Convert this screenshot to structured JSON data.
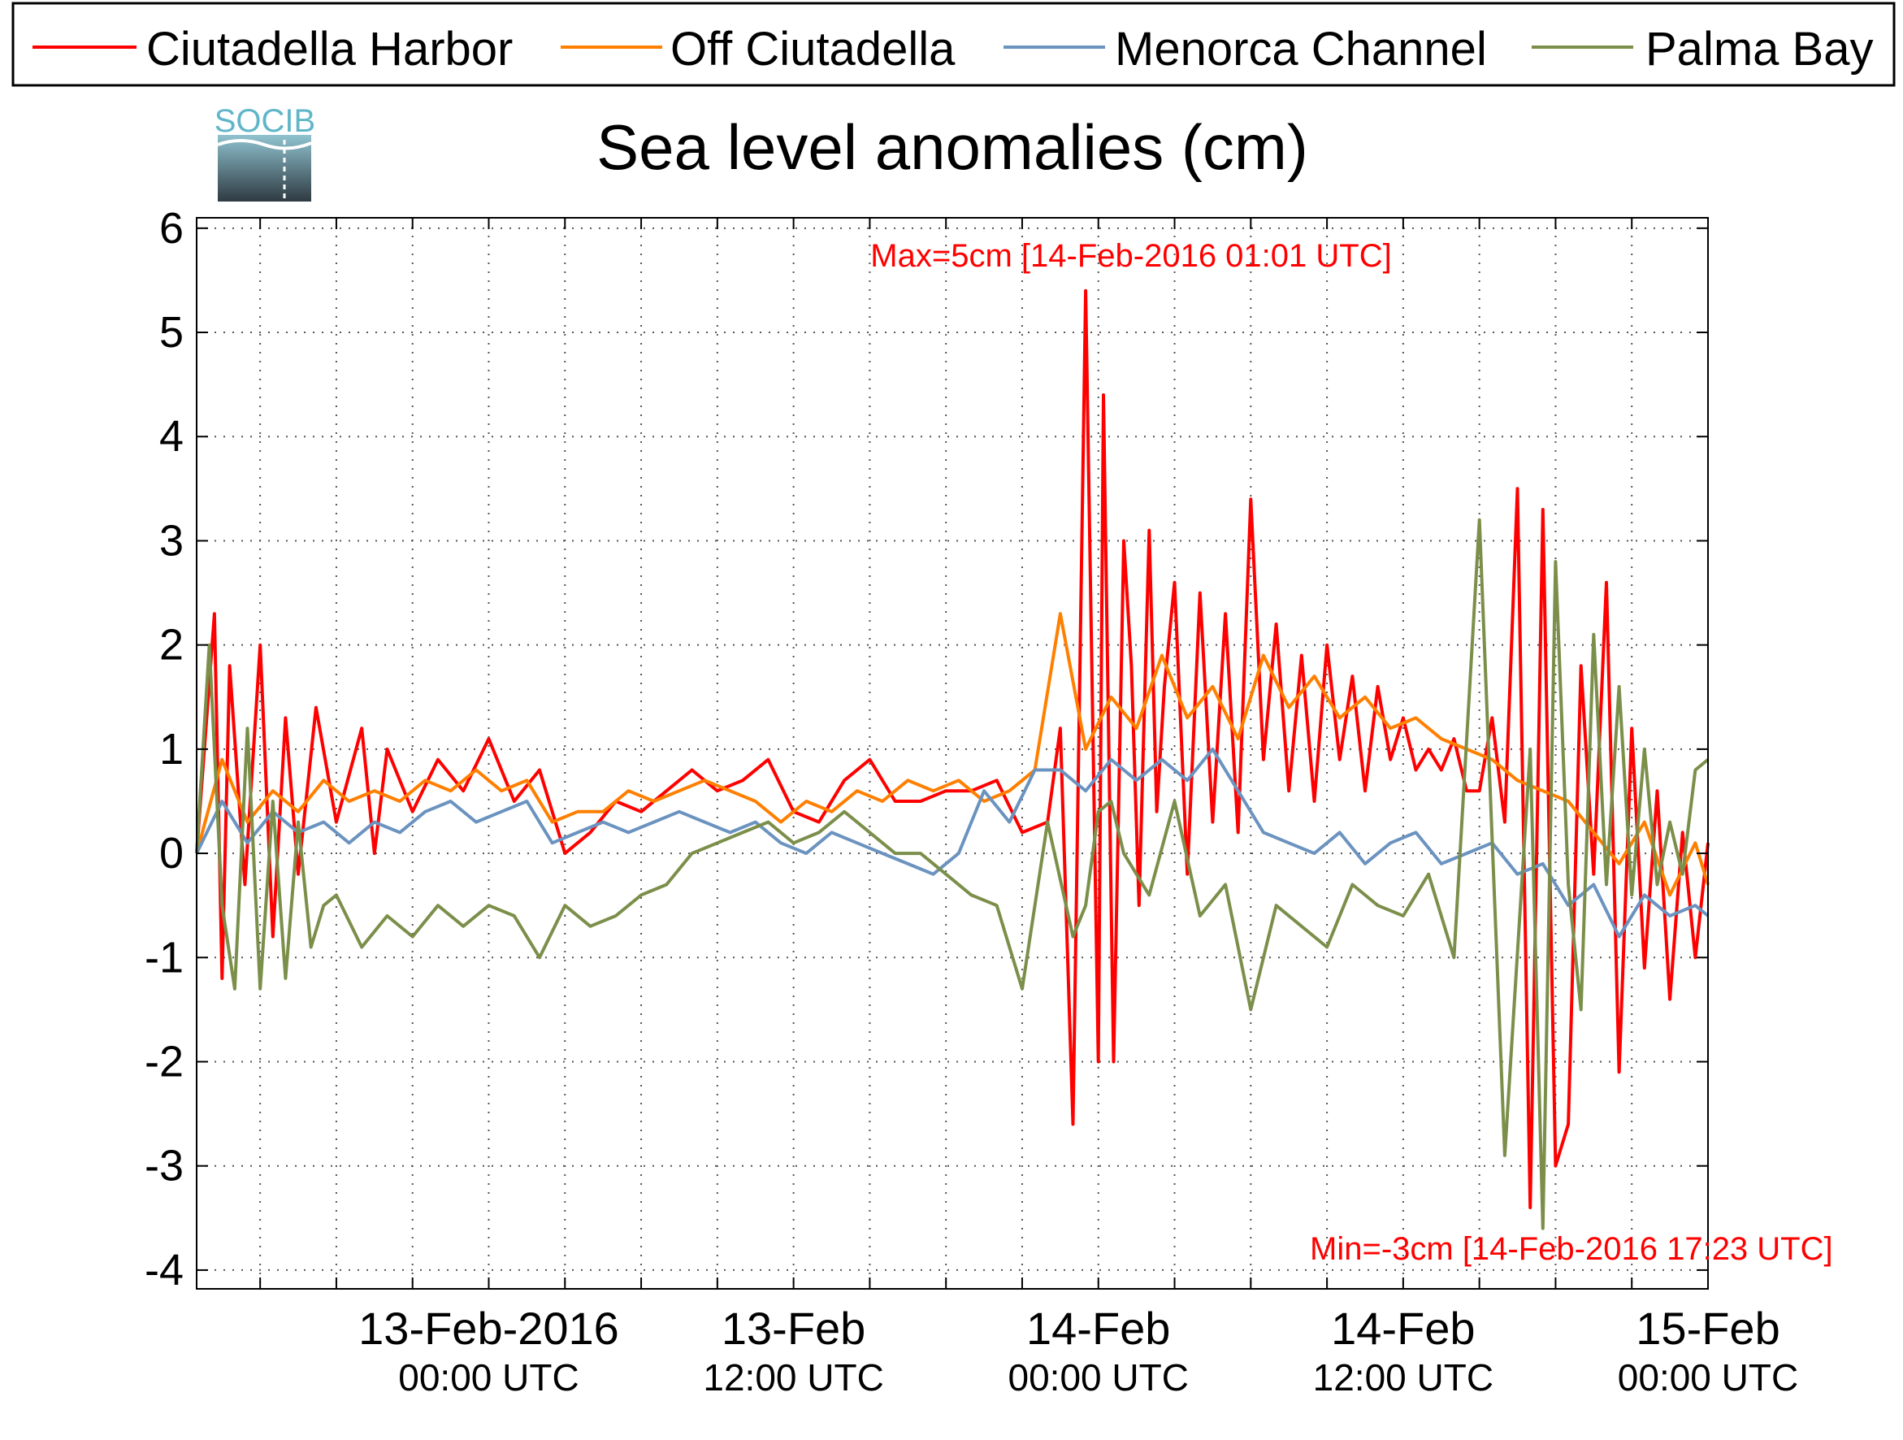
{
  "logo": {
    "text": "SOCIB"
  },
  "chart_data": {
    "type": "line",
    "title": "Sea level anomalies (cm)",
    "xlabel": "",
    "ylabel": "",
    "ylim": [
      -4.18,
      6.1
    ],
    "xlim_hours": [
      -11.5,
      48
    ],
    "y_ticks": [
      6,
      5,
      4,
      3,
      2,
      1,
      0,
      -1,
      -2,
      -3,
      -4
    ],
    "x_tick_labels": [
      {
        "hours": 0,
        "date": "13-Feb-2016",
        "time": "00:00 UTC"
      },
      {
        "hours": 12,
        "date": "13-Feb",
        "time": "12:00 UTC"
      },
      {
        "hours": 24,
        "date": "14-Feb",
        "time": "00:00 UTC"
      },
      {
        "hours": 36,
        "date": "14-Feb",
        "time": "12:00 UTC"
      },
      {
        "hours": 48,
        "date": "15-Feb",
        "time": "00:00 UTC"
      }
    ],
    "grid": true,
    "legend_position": "top",
    "annotations": {
      "max": "Max=5cm [14-Feb-2016 01:01 UTC]",
      "min": "Min=-3cm [14-Feb-2016 17:23 UTC]"
    },
    "series": [
      {
        "name": "Ciutadella Harbor",
        "color": "#ff0000",
        "x": [
          -11.5,
          -10.8,
          -10.5,
          -10.2,
          -9.6,
          -9.0,
          -8.5,
          -8.0,
          -7.5,
          -6.8,
          -6.0,
          -5.0,
          -4.5,
          -4.0,
          -3.0,
          -2.0,
          -1.0,
          0,
          1,
          2,
          3,
          4,
          5,
          6,
          7,
          8,
          9,
          10,
          11,
          12,
          13,
          14,
          15,
          16,
          17,
          18,
          19,
          20,
          21,
          22,
          22.5,
          23,
          23.5,
          24,
          24.2,
          24.6,
          25.0,
          25.3,
          25.6,
          26.0,
          26.3,
          26.6,
          27.0,
          27.5,
          28.0,
          28.5,
          29,
          29.5,
          30,
          30.5,
          31,
          31.5,
          32,
          32.5,
          33,
          33.5,
          34,
          34.5,
          35,
          35.5,
          36,
          36.5,
          37,
          37.5,
          38,
          38.5,
          39,
          39.5,
          40,
          40.5,
          41,
          41.5,
          42,
          42.5,
          43,
          43.5,
          44,
          44.5,
          45,
          45.5,
          46,
          46.5,
          47,
          47.5,
          48
        ],
        "y": [
          0.0,
          2.3,
          -1.2,
          1.8,
          -0.3,
          2.0,
          -0.8,
          1.3,
          -0.2,
          1.4,
          0.3,
          1.2,
          0.0,
          1.0,
          0.4,
          0.9,
          0.6,
          1.1,
          0.5,
          0.8,
          0.0,
          0.2,
          0.5,
          0.4,
          0.6,
          0.8,
          0.6,
          0.7,
          0.9,
          0.4,
          0.3,
          0.7,
          0.9,
          0.5,
          0.5,
          0.6,
          0.6,
          0.7,
          0.2,
          0.3,
          1.2,
          -2.6,
          5.4,
          -2.0,
          4.4,
          -2.0,
          3.0,
          1.8,
          -0.5,
          3.1,
          0.4,
          1.6,
          2.6,
          -0.2,
          2.5,
          0.3,
          2.3,
          0.2,
          3.4,
          0.9,
          2.2,
          0.6,
          1.9,
          0.5,
          2.0,
          0.9,
          1.7,
          0.6,
          1.6,
          0.9,
          1.3,
          0.8,
          1.0,
          0.8,
          1.1,
          0.6,
          0.6,
          1.3,
          0.3,
          3.5,
          -3.4,
          3.3,
          -3.0,
          -2.6,
          1.8,
          -0.2,
          2.6,
          -2.1,
          1.2,
          -1.1,
          0.6,
          -1.4,
          0.2,
          -1.0,
          0.1
        ]
      },
      {
        "name": "Off Ciutadella",
        "color": "#ff7f00",
        "x": [
          -11.5,
          -10.5,
          -9.5,
          -8.5,
          -7.5,
          -6.5,
          -5.5,
          -4.5,
          -3.5,
          -2.5,
          -1.5,
          -0.5,
          0.5,
          1.5,
          2.5,
          3.5,
          4.5,
          5.5,
          6.5,
          7.5,
          8.5,
          9.5,
          10.5,
          11.5,
          12.5,
          13.5,
          14.5,
          15.5,
          16.5,
          17.5,
          18.5,
          19.5,
          20.5,
          21.5,
          22.5,
          23.5,
          24.5,
          25.5,
          26.5,
          27.5,
          28.5,
          29.5,
          30.5,
          31.5,
          32.5,
          33.5,
          34.5,
          35.5,
          36.5,
          37.5,
          38.5,
          39.5,
          40.5,
          41.5,
          42.5,
          43.5,
          44.5,
          45.5,
          46.5,
          47.5,
          48
        ],
        "y": [
          0.0,
          0.9,
          0.3,
          0.6,
          0.4,
          0.7,
          0.5,
          0.6,
          0.5,
          0.7,
          0.6,
          0.8,
          0.6,
          0.7,
          0.3,
          0.4,
          0.4,
          0.6,
          0.5,
          0.6,
          0.7,
          0.6,
          0.5,
          0.3,
          0.5,
          0.4,
          0.6,
          0.5,
          0.7,
          0.6,
          0.7,
          0.5,
          0.6,
          0.8,
          2.3,
          1.0,
          1.5,
          1.2,
          1.9,
          1.3,
          1.6,
          1.1,
          1.9,
          1.4,
          1.7,
          1.3,
          1.5,
          1.2,
          1.3,
          1.1,
          1.0,
          0.9,
          0.7,
          0.6,
          0.5,
          0.2,
          -0.1,
          0.3,
          -0.4,
          0.1,
          -0.3
        ]
      },
      {
        "name": "Menorca Channel",
        "color": "#6b93c0",
        "x": [
          -11.5,
          -10.5,
          -9.5,
          -8.5,
          -7.5,
          -6.5,
          -5.5,
          -4.5,
          -3.5,
          -2.5,
          -1.5,
          -0.5,
          0.5,
          1.5,
          2.5,
          3.5,
          4.5,
          5.5,
          6.5,
          7.5,
          8.5,
          9.5,
          10.5,
          11.5,
          12.5,
          13.5,
          14.5,
          15.5,
          16.5,
          17.5,
          18.5,
          19.5,
          20.5,
          21.5,
          22.5,
          23.5,
          24.5,
          25.5,
          26.5,
          27.5,
          28.5,
          29.5,
          30.5,
          31.5,
          32.5,
          33.5,
          34.5,
          35.5,
          36.5,
          37.5,
          38.5,
          39.5,
          40.5,
          41.5,
          42.5,
          43.5,
          44.5,
          45.5,
          46.5,
          47.5,
          48
        ],
        "y": [
          0.0,
          0.5,
          0.1,
          0.4,
          0.2,
          0.3,
          0.1,
          0.3,
          0.2,
          0.4,
          0.5,
          0.3,
          0.4,
          0.5,
          0.1,
          0.2,
          0.3,
          0.2,
          0.3,
          0.4,
          0.3,
          0.2,
          0.3,
          0.1,
          0.0,
          0.2,
          0.1,
          0.0,
          -0.1,
          -0.2,
          0.0,
          0.6,
          0.3,
          0.8,
          0.8,
          0.6,
          0.9,
          0.7,
          0.9,
          0.7,
          1.0,
          0.6,
          0.2,
          0.1,
          0.0,
          0.2,
          -0.1,
          0.1,
          0.2,
          -0.1,
          0.0,
          0.1,
          -0.2,
          -0.1,
          -0.5,
          -0.3,
          -0.8,
          -0.4,
          -0.6,
          -0.5,
          -0.6
        ]
      },
      {
        "name": "Palma Bay",
        "color": "#7b8f4a",
        "x": [
          -11.5,
          -11.0,
          -10.5,
          -10.0,
          -9.5,
          -9.0,
          -8.5,
          -8.0,
          -7.5,
          -7.0,
          -6.5,
          -6.0,
          -5.0,
          -4.0,
          -3.0,
          -2.0,
          -1.0,
          0,
          1,
          2,
          3,
          4,
          5,
          6,
          7,
          8,
          9,
          10,
          11,
          12,
          13,
          14,
          15,
          16,
          17,
          18,
          19,
          20,
          21,
          22,
          23,
          23.5,
          24,
          24.5,
          25,
          26,
          27,
          28,
          29,
          30,
          31,
          32,
          33,
          34,
          35,
          36,
          37,
          38,
          39,
          40,
          41,
          41.5,
          42,
          42.5,
          43,
          43.5,
          44,
          44.5,
          45,
          45.5,
          46,
          46.5,
          47,
          47.5,
          48
        ],
        "y": [
          0.0,
          2.0,
          -0.5,
          -1.3,
          1.2,
          -1.3,
          0.5,
          -1.2,
          0.3,
          -0.9,
          -0.5,
          -0.4,
          -0.9,
          -0.6,
          -0.8,
          -0.5,
          -0.7,
          -0.5,
          -0.6,
          -1.0,
          -0.5,
          -0.7,
          -0.6,
          -0.4,
          -0.3,
          0.0,
          0.1,
          0.2,
          0.3,
          0.1,
          0.2,
          0.4,
          0.2,
          0.0,
          0.0,
          -0.2,
          -0.4,
          -0.5,
          -1.3,
          0.3,
          -0.8,
          -0.5,
          0.4,
          0.5,
          0.0,
          -0.4,
          0.5,
          -0.6,
          -0.3,
          -1.5,
          -0.5,
          -0.7,
          -0.9,
          -0.3,
          -0.5,
          -0.6,
          -0.2,
          -1.0,
          3.2,
          -2.9,
          1.0,
          -3.6,
          2.8,
          -0.3,
          -1.5,
          2.1,
          -0.3,
          1.6,
          -0.4,
          1.0,
          -0.3,
          0.3,
          -0.2,
          0.8,
          0.9
        ]
      }
    ]
  }
}
